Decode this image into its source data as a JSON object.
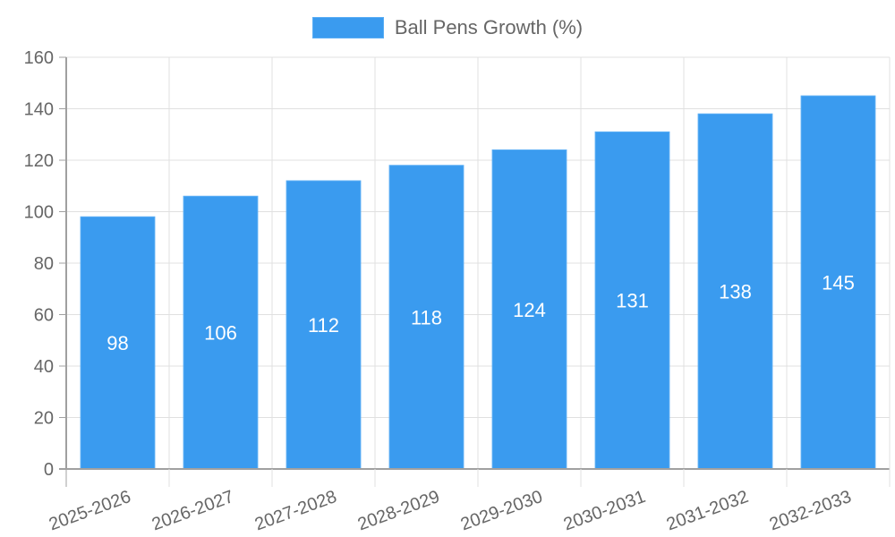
{
  "chart_data": {
    "type": "bar",
    "title": "",
    "xlabel": "",
    "ylabel": "",
    "legend": {
      "position": "top",
      "entries": [
        "Ball Pens Growth (%)"
      ]
    },
    "categories": [
      "2025-2026",
      "2026-2027",
      "2027-2028",
      "2028-2029",
      "2029-2030",
      "2030-2031",
      "2031-2032",
      "2032-2033"
    ],
    "series": [
      {
        "name": "Ball Pens Growth (%)",
        "values": [
          98,
          106,
          112,
          118,
          124,
          131,
          138,
          145
        ],
        "color": "#3a9bef"
      }
    ],
    "data_labels": [
      "98",
      "106",
      "112",
      "118",
      "124",
      "131",
      "138",
      "145"
    ],
    "ylim": [
      0,
      160
    ],
    "yticks": [
      0,
      20,
      40,
      60,
      80,
      100,
      120,
      140,
      160
    ],
    "grid": true,
    "x_tick_rotation": -20
  },
  "legend": {
    "label": "Ball Pens Growth (%)"
  },
  "colors": {
    "bar": "#3a9bef",
    "bar_border": "#5aaef5",
    "grid": "#e0e0e0",
    "axis": "#a0a0a0",
    "text": "#666666"
  }
}
